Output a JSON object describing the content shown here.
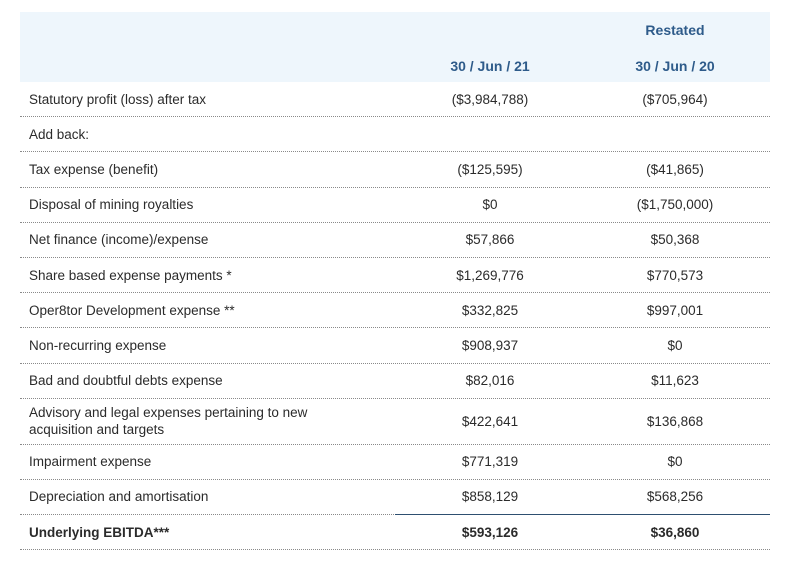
{
  "header": {
    "restated": "Restated",
    "col1": "30 / Jun / 21",
    "col2": "30 / Jun / 20"
  },
  "rows": [
    {
      "label": "Statutory profit (loss) after tax",
      "v1": "($3,984,788)",
      "v2": "($705,964)"
    },
    {
      "label": "Add back:",
      "v1": "",
      "v2": ""
    },
    {
      "label": "Tax expense (benefit)",
      "v1": "($125,595)",
      "v2": "($41,865)"
    },
    {
      "label": "Disposal of mining royalties",
      "v1": "$0",
      "v2": "($1,750,000)"
    },
    {
      "label": "Net finance (income)/expense",
      "v1": "$57,866",
      "v2": "$50,368"
    },
    {
      "label": "Share based expense payments *",
      "v1": "$1,269,776",
      "v2": "$770,573"
    },
    {
      "label": "Oper8tor Development expense **",
      "v1": "$332,825",
      "v2": "$997,001"
    },
    {
      "label": "Non-recurring expense",
      "v1": "$908,937",
      "v2": "$0"
    },
    {
      "label": "Bad and doubtful debts expense",
      "v1": "$82,016",
      "v2": "$11,623"
    },
    {
      "label": "Advisory and legal expenses pertaining to new acquisition and targets",
      "v1": "$422,641",
      "v2": "$136,868"
    },
    {
      "label": "Impairment expense",
      "v1": "$771,319",
      "v2": "$0"
    },
    {
      "label": "Depreciation and amortisation",
      "v1": "$858,129",
      "v2": "$568,256"
    }
  ],
  "total": {
    "label": "Underlying EBITDA***",
    "v1": "$593,126",
    "v2": "$36,860"
  }
}
